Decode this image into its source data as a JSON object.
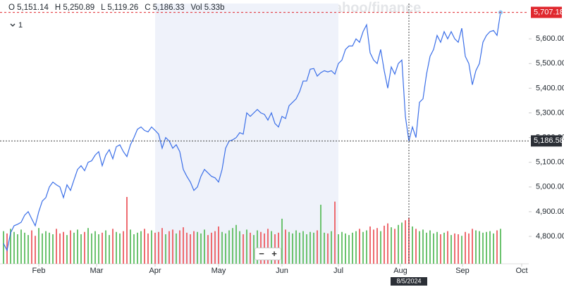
{
  "header": {
    "open": "O 5,151.14",
    "high": "H 5,250.89",
    "low": "L 5,119.26",
    "close": "C 5,186.33",
    "volume": "Vol 5.33b",
    "interval": "1"
  },
  "watermark": "yahoo/finance",
  "zoom": [
    "−",
    "+"
  ],
  "chart_data": {
    "type": "line",
    "x": [
      0,
      1,
      2,
      3,
      4,
      5,
      6,
      7,
      8,
      9,
      10,
      11,
      12,
      13,
      14,
      15,
      16,
      17,
      18,
      19,
      20,
      21,
      22,
      23,
      24,
      25,
      26,
      27,
      28,
      29,
      30,
      31,
      32,
      33,
      34,
      35,
      36,
      37,
      38,
      39,
      40,
      41,
      42,
      43,
      44,
      45,
      46,
      47,
      48,
      49,
      50,
      51,
      52,
      53,
      54,
      55,
      56,
      57,
      58,
      59,
      60,
      61,
      62,
      63,
      64,
      65,
      66,
      67,
      68,
      69,
      70,
      71,
      72,
      73,
      74,
      75,
      76,
      77,
      78,
      79,
      80,
      81,
      82,
      83,
      84,
      85,
      86,
      87,
      88,
      89,
      90,
      91,
      92,
      93,
      94,
      95,
      96,
      97,
      98,
      99,
      100,
      101,
      102,
      103,
      104,
      105,
      106,
      107,
      108,
      109,
      110,
      111,
      112,
      113,
      114,
      115,
      116,
      117,
      118,
      119,
      120,
      121,
      122,
      123,
      124,
      125,
      126,
      127,
      128,
      129,
      130,
      131,
      132,
      133,
      134,
      135,
      136,
      137,
      138,
      139,
      140,
      141
    ],
    "series": [
      {
        "name": "Price",
        "color": "#3b6fe8",
        "values": [
          4771,
          4743,
          4814,
          4843,
          4849,
          4857,
          4886,
          4900,
          4871,
          4843,
          4900,
          4943,
          4957,
          5000,
          5020,
          5009,
          5000,
          4957,
          5009,
          4986,
          5029,
          5071,
          5086,
          5066,
          5100,
          5106,
          5129,
          5143,
          5086,
          5129,
          5151,
          5114,
          5163,
          5171,
          5143,
          5123,
          5171,
          5200,
          5234,
          5243,
          5229,
          5223,
          5243,
          5229,
          5214,
          5157,
          5200,
          5186,
          5157,
          5171,
          5143,
          5071,
          5043,
          5020,
          4986,
          5000,
          5043,
          5071,
          5057,
          5043,
          5037,
          5020,
          5071,
          5157,
          5186,
          5191,
          5200,
          5220,
          5214,
          5300,
          5286,
          5300,
          5314,
          5300,
          5294,
          5271,
          5300,
          5257,
          5243,
          5286,
          5277,
          5329,
          5343,
          5357,
          5386,
          5429,
          5429,
          5477,
          5480,
          5449,
          5463,
          5471,
          5466,
          5471,
          5457,
          5500,
          5514,
          5557,
          5571,
          5571,
          5600,
          5586,
          5629,
          5657,
          5543,
          5514,
          5500,
          5557,
          5471,
          5400,
          5486,
          5457,
          5500,
          5514,
          5286,
          5186,
          5243,
          5200,
          5343,
          5357,
          5457,
          5529,
          5557,
          5614,
          5586,
          5629,
          5600,
          5629,
          5600,
          5586,
          5643,
          5529,
          5500,
          5414,
          5471,
          5500,
          5586,
          5614,
          5629,
          5634,
          5614,
          5707.18
        ]
      },
      {
        "name": "Volume",
        "up_color": "#6cc36f",
        "down_color": "#ee6b70",
        "values": [
          4.2,
          3.9,
          4.5,
          4.1,
          3.8,
          4.4,
          4.0,
          3.7,
          4.3,
          3.6,
          4.6,
          3.9,
          4.2,
          4.0,
          3.8,
          4.5,
          3.9,
          4.1,
          3.7,
          4.3,
          4.0,
          4.4,
          3.8,
          4.1,
          4.6,
          3.9,
          4.2,
          3.8,
          4.0,
          4.3,
          3.7,
          4.5,
          4.1,
          3.9,
          4.2,
          8.6,
          4.4,
          3.8,
          4.0,
          4.2,
          4.5,
          3.9,
          4.3,
          4.0,
          4.1,
          4.6,
          3.8,
          4.2,
          4.4,
          3.9,
          4.3,
          4.7,
          4.0,
          3.8,
          4.2,
          4.1,
          3.9,
          4.4,
          3.7,
          4.0,
          4.2,
          4.8,
          4.1,
          3.9,
          4.3,
          4.6,
          5.0,
          4.2,
          3.8,
          4.4,
          4.0,
          3.7,
          4.3,
          4.1,
          3.9,
          4.5,
          4.2,
          3.8,
          4.0,
          5.8,
          4.4,
          4.1,
          3.9,
          4.3,
          4.0,
          4.2,
          3.8,
          4.1,
          4.0,
          4.3,
          7.6,
          4.0,
          3.9,
          4.2,
          8.0,
          3.8,
          4.1,
          3.9,
          3.7,
          4.0,
          4.2,
          4.5,
          4.1,
          4.3,
          4.8,
          4.4,
          4.6,
          4.2,
          4.9,
          5.2,
          4.7,
          4.5,
          5.0,
          5.3,
          5.6,
          5.9,
          4.8,
          4.5,
          4.2,
          4.4,
          4.0,
          4.3,
          3.9,
          4.1,
          3.8,
          4.0,
          4.2,
          3.7,
          3.9,
          3.8,
          3.6,
          4.1,
          3.9,
          4.5,
          4.3,
          4.2,
          4.0,
          4.1,
          4.2,
          3.9,
          4.3,
          4.5
        ]
      }
    ],
    "xlim": [
      0,
      149
    ],
    "xticks": [
      {
        "value": 10,
        "label": "Feb"
      },
      {
        "value": 26.4,
        "label": "Mar"
      },
      {
        "value": 43,
        "label": "Apr"
      },
      {
        "value": 61,
        "label": "May"
      },
      {
        "value": 79,
        "label": "Jun"
      },
      {
        "value": 95,
        "label": "Jul"
      },
      {
        "value": 112.6,
        "label": "Aug"
      },
      {
        "value": 130.2,
        "label": "Sep"
      },
      {
        "value": 147,
        "label": "Oct"
      }
    ],
    "ylim": [
      4689,
      5743
    ],
    "yticks": [
      {
        "value": 4800,
        "label": "4,800.00"
      },
      {
        "value": 4900,
        "label": "4,900.00"
      },
      {
        "value": 5000,
        "label": "5,000.00"
      },
      {
        "value": 5100,
        "label": "5,100.00"
      },
      {
        "value": 5200,
        "label": "5,200.00"
      },
      {
        "value": 5300,
        "label": "5,300.00"
      },
      {
        "value": 5400,
        "label": "5,400.00"
      },
      {
        "value": 5500,
        "label": "5,500.00"
      },
      {
        "value": 5600,
        "label": "5,600.00"
      }
    ],
    "highlight": [
      43,
      95
    ],
    "last_price": {
      "value": 5707.18,
      "label": "5,707.18",
      "color": "#e0282e"
    },
    "crosshair": {
      "x": {
        "value": 115,
        "label": "8/5/2024"
      },
      "y": {
        "value": 5186.58,
        "label": "5,186.58"
      }
    }
  }
}
